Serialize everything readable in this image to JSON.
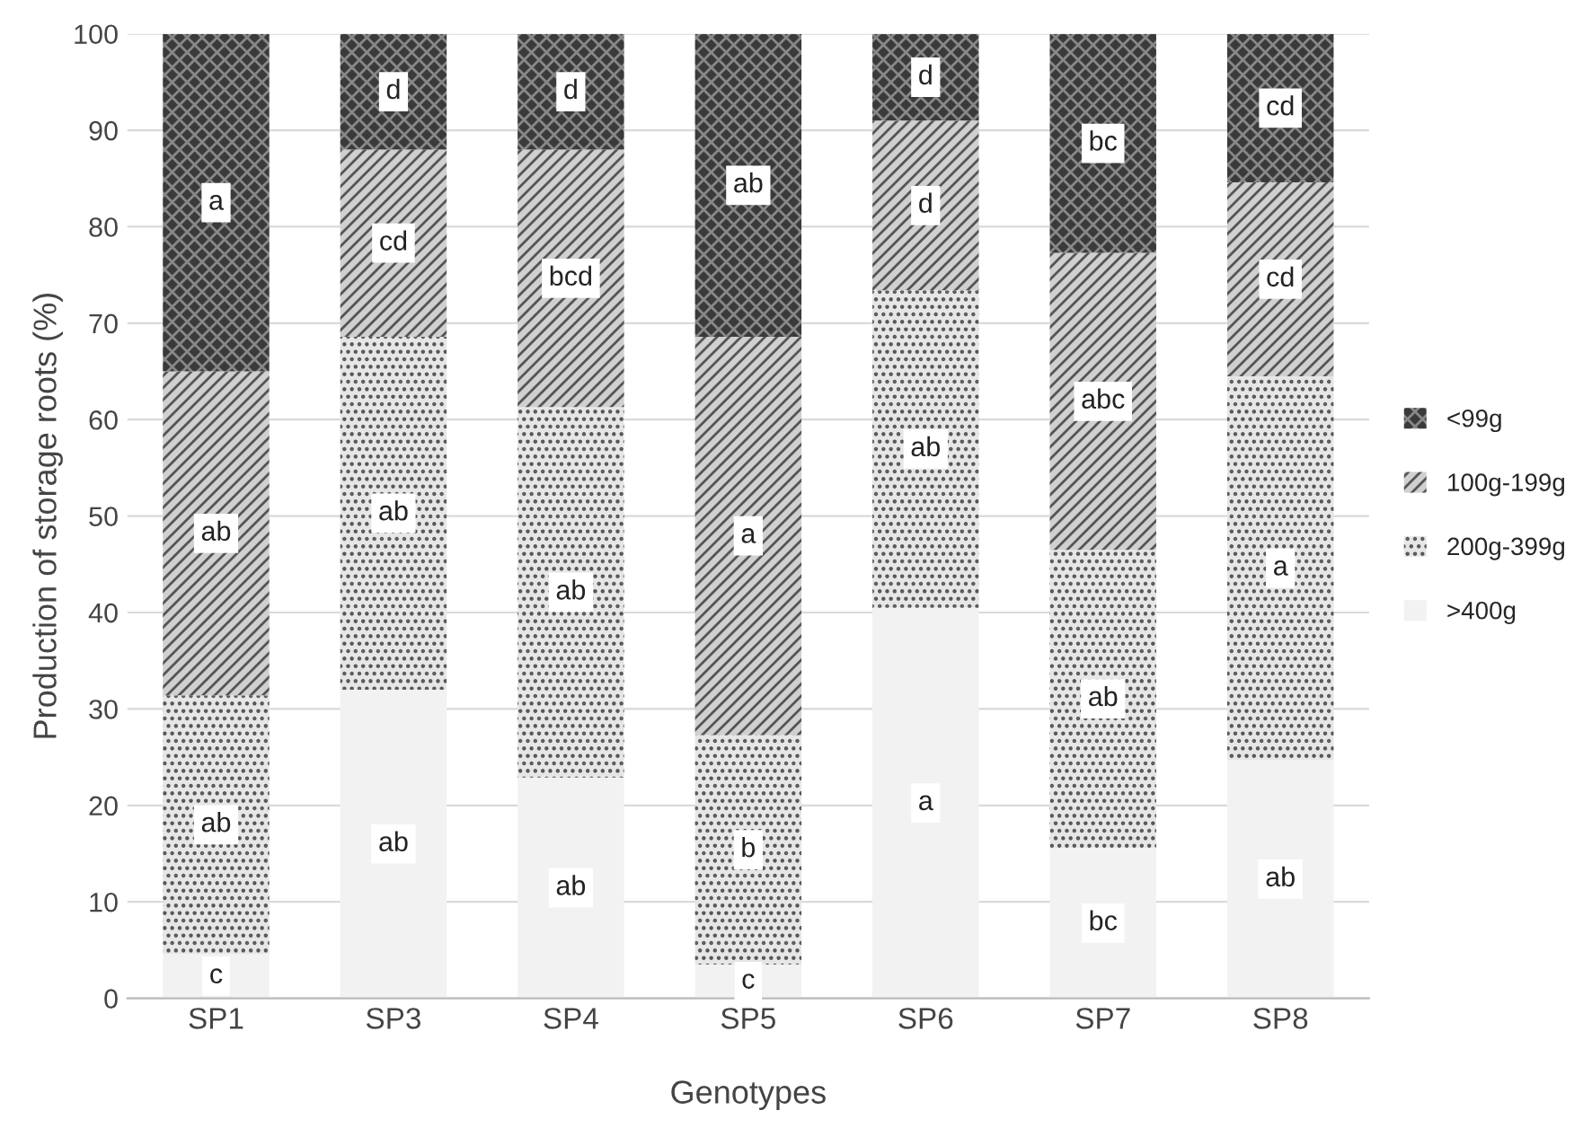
{
  "chart_data": {
    "type": "bar",
    "stacked": true,
    "xlabel": "Genotypes",
    "ylabel": "Production of storage roots (%)",
    "categories": [
      "SP1",
      "SP3",
      "SP4",
      "SP5",
      "SP6",
      "SP7",
      "SP8"
    ],
    "series": [
      {
        "name": ">400g",
        "color": "#f2f2f2",
        "values": [
          4.6,
          32.0,
          22.9,
          3.5,
          40.5,
          15.6,
          24.7
        ],
        "value_labels": [
          "c",
          "ab",
          "ab",
          "c",
          "a",
          "bc",
          "ab"
        ]
      },
      {
        "name": "200g-399g",
        "color": "#e6e6e6",
        "values": [
          26.8,
          36.6,
          38.4,
          23.8,
          32.9,
          30.9,
          39.8
        ],
        "value_labels": [
          "ab",
          "ab",
          "ab",
          "b",
          "ab",
          "ab",
          "a"
        ]
      },
      {
        "name": "100g-199g",
        "color": "#d0d0d0",
        "values": [
          33.6,
          19.4,
          26.7,
          41.3,
          17.6,
          30.8,
          20.1
        ],
        "value_labels": [
          "ab",
          "cd",
          "bcd",
          "a",
          "d",
          "abc",
          "cd"
        ]
      },
      {
        "name": "<99g",
        "color": "#3a3a3a",
        "values": [
          35.0,
          12.0,
          12.0,
          31.4,
          9.0,
          22.7,
          15.4
        ],
        "value_labels": [
          "a",
          "d",
          "d",
          "ab",
          "d",
          "bc",
          "cd"
        ]
      }
    ],
    "ylim": [
      0,
      100
    ],
    "yticks": [
      0,
      10,
      20,
      30,
      40,
      50,
      60,
      70,
      80,
      90,
      100
    ],
    "grid": "y",
    "legend": "right"
  }
}
